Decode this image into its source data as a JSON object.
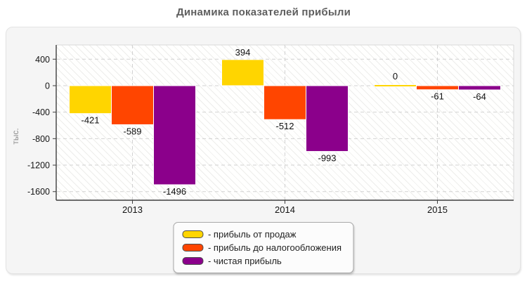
{
  "chart_data": {
    "type": "bar",
    "title": "Динамика показателей прибыли",
    "xlabel": "",
    "ylabel": "тыс.",
    "categories": [
      "2013",
      "2014",
      "2015"
    ],
    "series": [
      {
        "name": "- прибыль от продаж",
        "color": "#ffd500",
        "values": [
          -421,
          394,
          0
        ]
      },
      {
        "name": "- прибыль до налогообложения",
        "color": "#ff4500",
        "values": [
          -589,
          -512,
          -61
        ]
      },
      {
        "name": "- чистая прибыль",
        "color": "#8b008b",
        "values": [
          -1496,
          -993,
          -64
        ]
      }
    ],
    "yticks": [
      400,
      0,
      -400,
      -800,
      -1200,
      -1600
    ],
    "ylim": [
      -1730,
      615
    ],
    "grid": true,
    "legend_position": "bottom-center",
    "colors": {
      "axis_dark": "#3f3f3f",
      "axis_light": "#d9d9d9",
      "gridline": "#d2d2d2",
      "tick_label": "#141414",
      "value_label": "#111111",
      "bar_outline": "#ffffff"
    }
  }
}
